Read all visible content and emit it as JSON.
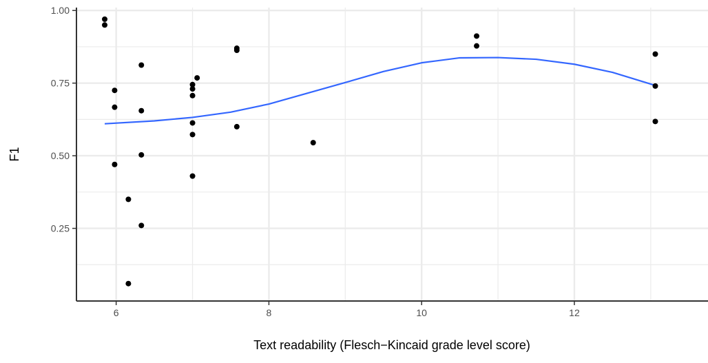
{
  "chart_data": {
    "type": "scatter",
    "title": "",
    "xlabel": "Text readability (Flesch−Kincaid grade level score)",
    "ylabel": "F1",
    "xlim": [
      5.48,
      13.75
    ],
    "ylim": [
      0.0,
      1.01
    ],
    "x_major_ticks": [
      6,
      8,
      10,
      12
    ],
    "x_tick_labels": [
      "6",
      "8",
      "10",
      "12"
    ],
    "y_major_ticks": [
      0.25,
      0.5,
      0.75,
      1.0
    ],
    "y_tick_labels": [
      "0.25",
      "0.50",
      "0.75",
      "1.00"
    ],
    "x_minor_ticks": [
      7,
      9,
      11,
      13
    ],
    "y_minor_ticks": [
      0.125,
      0.375,
      0.625,
      0.875
    ],
    "grid": true,
    "point_color": "#000000",
    "smooth_color": "#3366ff",
    "points": [
      {
        "x": 5.85,
        "y": 0.97
      },
      {
        "x": 5.85,
        "y": 0.95
      },
      {
        "x": 5.98,
        "y": 0.725
      },
      {
        "x": 5.98,
        "y": 0.667
      },
      {
        "x": 5.98,
        "y": 0.47
      },
      {
        "x": 6.16,
        "y": 0.35
      },
      {
        "x": 6.16,
        "y": 0.06
      },
      {
        "x": 6.33,
        "y": 0.812
      },
      {
        "x": 6.33,
        "y": 0.655
      },
      {
        "x": 6.33,
        "y": 0.503
      },
      {
        "x": 6.33,
        "y": 0.26
      },
      {
        "x": 7.0,
        "y": 0.745
      },
      {
        "x": 7.0,
        "y": 0.73
      },
      {
        "x": 7.0,
        "y": 0.707
      },
      {
        "x": 7.0,
        "y": 0.613
      },
      {
        "x": 7.0,
        "y": 0.573
      },
      {
        "x": 7.0,
        "y": 0.43
      },
      {
        "x": 7.06,
        "y": 0.768
      },
      {
        "x": 7.58,
        "y": 0.87
      },
      {
        "x": 7.58,
        "y": 0.863
      },
      {
        "x": 7.58,
        "y": 0.6
      },
      {
        "x": 8.58,
        "y": 0.545
      },
      {
        "x": 10.72,
        "y": 0.912
      },
      {
        "x": 10.72,
        "y": 0.878
      },
      {
        "x": 13.06,
        "y": 0.85
      },
      {
        "x": 13.06,
        "y": 0.74
      },
      {
        "x": 13.06,
        "y": 0.618
      }
    ],
    "smooth_line": [
      {
        "x": 5.85,
        "y": 0.61
      },
      {
        "x": 6.5,
        "y": 0.62
      },
      {
        "x": 7.0,
        "y": 0.632
      },
      {
        "x": 7.5,
        "y": 0.65
      },
      {
        "x": 8.0,
        "y": 0.678
      },
      {
        "x": 8.5,
        "y": 0.715
      },
      {
        "x": 9.0,
        "y": 0.752
      },
      {
        "x": 9.5,
        "y": 0.79
      },
      {
        "x": 10.0,
        "y": 0.82
      },
      {
        "x": 10.5,
        "y": 0.837
      },
      {
        "x": 11.0,
        "y": 0.838
      },
      {
        "x": 11.5,
        "y": 0.832
      },
      {
        "x": 12.0,
        "y": 0.815
      },
      {
        "x": 12.5,
        "y": 0.787
      },
      {
        "x": 13.06,
        "y": 0.742
      }
    ]
  }
}
